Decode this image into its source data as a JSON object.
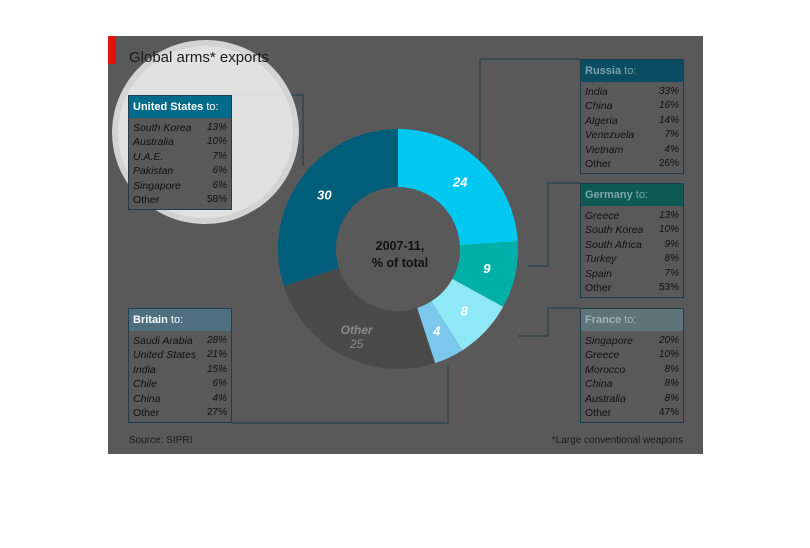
{
  "title": "Global arms* exports",
  "source": "Source: SIPRI",
  "footnote": "*Large conventional weapons",
  "center_label": [
    "2007-11,",
    "% of total"
  ],
  "chart_data": {
    "type": "pie",
    "title": "Global arms* exports",
    "subtitle": "2007-11, % of total",
    "slices": [
      {
        "name": "Russia",
        "value": 24,
        "color": "#00c8f0"
      },
      {
        "name": "Germany",
        "value": 9,
        "color": "#00b0a8"
      },
      {
        "name": "France",
        "value": 8,
        "color": "#8ee8f5"
      },
      {
        "name": "Britain",
        "value": 4,
        "color": "#7cc8ec"
      },
      {
        "name": "Other",
        "value": 25,
        "color": "#4a4a4a"
      },
      {
        "name": "United States",
        "value": 30,
        "color": "#005e7a"
      }
    ],
    "slice_labels": [
      "24",
      "9",
      "8",
      "4",
      "Other",
      "30"
    ],
    "other_value_label": "25"
  },
  "countries": [
    {
      "name": "United States",
      "to": " to:",
      "head_bg": "#006a8a",
      "head_color": "#ffffff",
      "to_color": "#ffffff",
      "rows": [
        [
          "South Korea",
          "13%"
        ],
        [
          "Australia",
          "10%"
        ],
        [
          "U.A.E.",
          "7%"
        ],
        [
          "Pakistan",
          "6%"
        ],
        [
          "Singapore",
          "6%"
        ],
        [
          "Other",
          "58%"
        ]
      ]
    },
    {
      "name": "Russia",
      "to": " to:",
      "head_bg": "#0a4d63",
      "head_color": "#7fa0ad",
      "to_color": "#7fa0ad",
      "rows": [
        [
          "India",
          "33%"
        ],
        [
          "China",
          "16%"
        ],
        [
          "Algeria",
          "14%"
        ],
        [
          "Venezuela",
          "7%"
        ],
        [
          "Vietnam",
          "4%"
        ],
        [
          "Other",
          "26%"
        ]
      ]
    },
    {
      "name": "Germany",
      "to": " to:",
      "head_bg": "#0d5a55",
      "head_color": "#7ea7a4",
      "to_color": "#7ea7a4",
      "rows": [
        [
          "Greece",
          "13%"
        ],
        [
          "South Korea",
          "10%"
        ],
        [
          "South Africa",
          "9%"
        ],
        [
          "Turkey",
          "8%"
        ],
        [
          "Spain",
          "7%"
        ],
        [
          "Other",
          "53%"
        ]
      ]
    },
    {
      "name": "Britain",
      "to": " to:",
      "head_bg": "#4f6e80",
      "head_color": "#ffffff",
      "to_color": "#ffffff",
      "rows": [
        [
          "Saudi Arabia",
          "28%"
        ],
        [
          "United States",
          "21%"
        ],
        [
          "India",
          "15%"
        ],
        [
          "Chile",
          "6%"
        ],
        [
          "China",
          "4%"
        ],
        [
          "Other",
          "27%"
        ]
      ]
    },
    {
      "name": "France",
      "to": " to:",
      "head_bg": "#5e7478",
      "head_color": "#9bb4b8",
      "to_color": "#9bb4b8",
      "rows": [
        [
          "Singapore",
          "20%"
        ],
        [
          "Greece",
          "10%"
        ],
        [
          "Morocco",
          "8%"
        ],
        [
          "China",
          "8%"
        ],
        [
          "Australia",
          "8%"
        ],
        [
          "Other",
          "47%"
        ]
      ]
    }
  ]
}
